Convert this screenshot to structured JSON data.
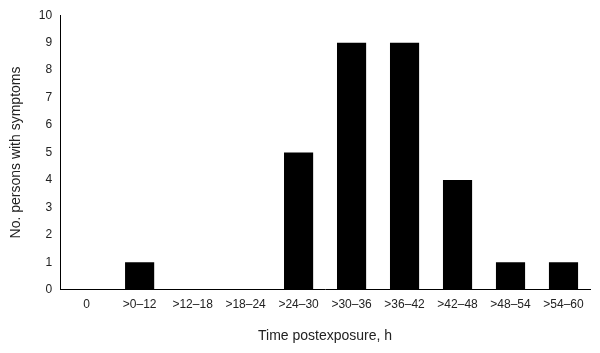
{
  "chart_data": {
    "type": "bar",
    "x_label": "Time postexposure, h",
    "y_label": "No. persons with symptoms",
    "categories": [
      "0",
      ">0–12",
      ">12–18",
      ">18–24",
      ">24–30",
      ">30–36",
      ">36–42",
      ">42–48",
      ">48–54",
      ">54–60"
    ],
    "values": [
      null,
      1,
      0,
      0,
      5,
      9,
      9,
      4,
      1,
      1
    ],
    "color": "#000000",
    "ylim": [
      0,
      10
    ],
    "yticks": [
      0,
      1,
      2,
      3,
      4,
      5,
      6,
      7,
      8,
      9,
      10
    ],
    "grid": false
  }
}
